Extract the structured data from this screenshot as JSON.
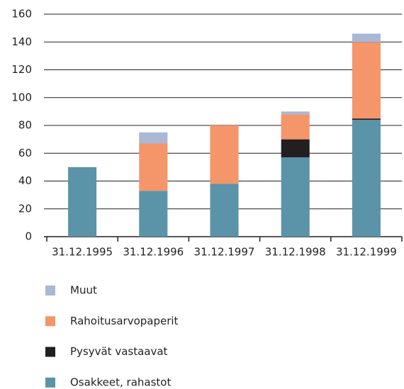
{
  "chart_data": {
    "type": "stacked_bar",
    "categories": [
      "31.12.1995",
      "31.12.1996",
      "31.12.1997",
      "31.12.1998",
      "31.12.1999"
    ],
    "series": [
      {
        "name": "Osakkeet, rahastot",
        "color": "#5b93a9",
        "values": [
          50,
          33,
          38,
          57,
          84
        ]
      },
      {
        "name": "Pysyvät vastaavat",
        "color": "#231f20",
        "values": [
          0,
          0,
          0,
          13,
          1
        ]
      },
      {
        "name": "Rahoitusarvopaperit",
        "color": "#f4956a",
        "values": [
          0,
          34,
          42,
          18,
          55
        ]
      },
      {
        "name": "Muut",
        "color": "#a9b8d4",
        "values": [
          0,
          8,
          0,
          2,
          6
        ]
      }
    ],
    "ylim": [
      0,
      160
    ],
    "yticks": [
      0,
      20,
      40,
      60,
      80,
      100,
      120,
      140,
      160
    ],
    "grid": true
  }
}
